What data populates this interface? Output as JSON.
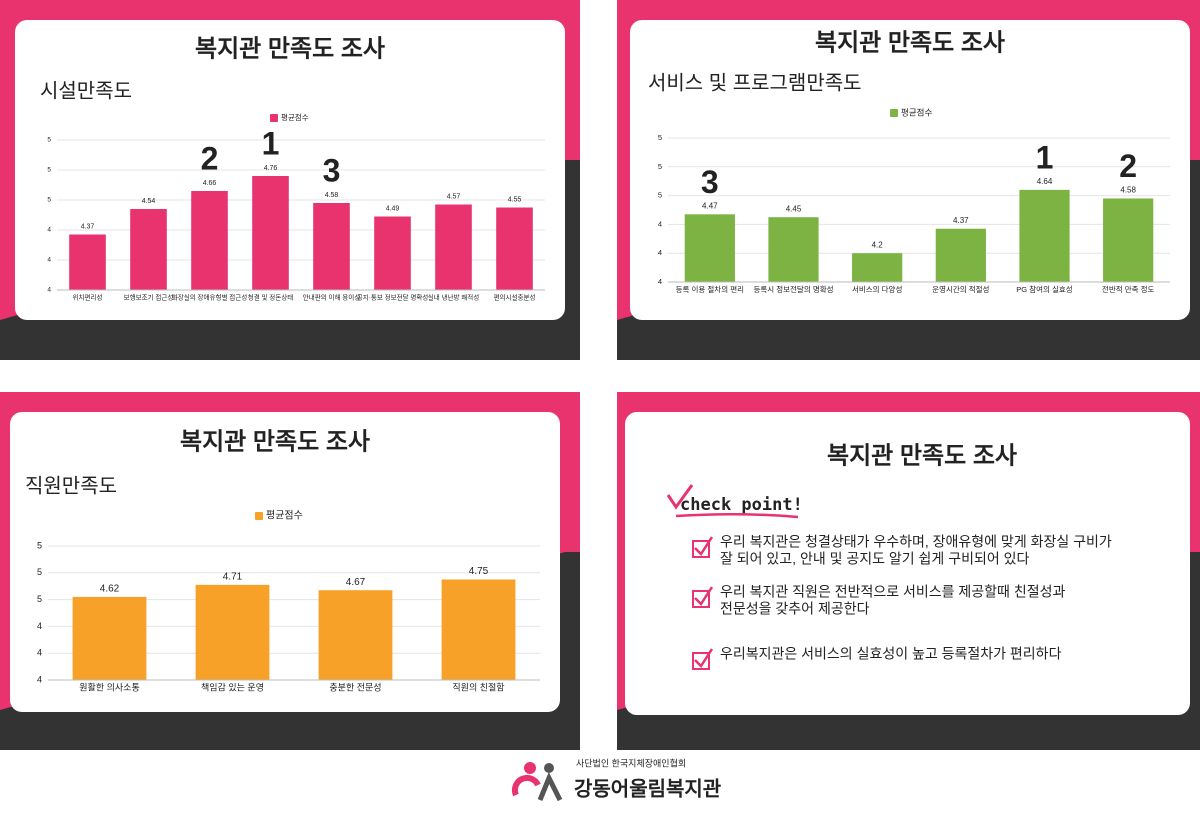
{
  "chart_data": [
    {
      "type": "bar",
      "title": "복지관 만족도 조사",
      "subtitle": "시설만족도",
      "categories": [
        "위치편리성",
        "보행보조기 접근성",
        "화장실의 장애유형별 접근성",
        "청결 및 정돈상태",
        "안내판의 이해 용이성",
        "공지·통보 정보전달 명확성",
        "실내 냉난방 쾌적성",
        "편의시설충분성"
      ],
      "series": [
        {
          "name": "평균점수",
          "color": "#e8336f",
          "values": [
            4.37,
            4.54,
            4.66,
            4.76,
            4.58,
            4.49,
            4.57,
            4.55
          ]
        }
      ],
      "rank_labels": [
        null,
        null,
        "2",
        "1",
        "3",
        null,
        null,
        null
      ],
      "ylim": [
        4,
        5
      ],
      "yticks": [
        4,
        {
          "value": 4.2,
          "label": "4"
        },
        {
          "value": 4.4,
          "label": "4"
        },
        {
          "value": 4.6,
          "label": "5"
        },
        {
          "value": 4.8,
          "label": "5"
        },
        5
      ],
      "grid": true
    },
    {
      "type": "bar",
      "title": "복지관 만족도 조사",
      "subtitle": "서비스 및 프로그램만족도",
      "categories": [
        "등록 이용 절차의 편리",
        "등록시 정보전달의 명확성",
        "서비스의 다양성",
        "운영시간의 적절성",
        "PG 참여의 실효성",
        "전반적 만족 정도"
      ],
      "series": [
        {
          "name": "평균점수",
          "color": "#7cb342",
          "values": [
            4.47,
            4.45,
            4.2,
            4.37,
            4.64,
            4.58
          ]
        }
      ],
      "rank_labels": [
        "3",
        null,
        null,
        null,
        "1",
        "2"
      ],
      "ylim": [
        4,
        5
      ],
      "yticks": [
        4,
        {
          "value": 4.2,
          "label": "4"
        },
        {
          "value": 4.4,
          "label": "4"
        },
        {
          "value": 4.6,
          "label": "5"
        },
        {
          "value": 4.8,
          "label": "5"
        },
        5
      ],
      "grid": true
    },
    {
      "type": "bar",
      "title": "복지관 만족도 조사",
      "subtitle": "직원만족도",
      "categories": [
        "원활한 의사소통",
        "책임감 있는 운영",
        "충분한 전문성",
        "직원의 친절함"
      ],
      "series": [
        {
          "name": "평균점수",
          "color": "#f7a128",
          "values": [
            4.62,
            4.71,
            4.67,
            4.75
          ]
        }
      ],
      "rank_labels": [
        null,
        null,
        null,
        null
      ],
      "ylim": [
        4,
        5
      ],
      "yticks": [
        4,
        {
          "value": 4.2,
          "label": "4"
        },
        {
          "value": 4.4,
          "label": "4"
        },
        {
          "value": 4.6,
          "label": "5"
        },
        {
          "value": 4.8,
          "label": "5"
        },
        5
      ],
      "grid": true
    }
  ],
  "checkpoint": {
    "title": "복지관 만족도 조사",
    "heading": "check point!",
    "items": [
      [
        "우리 복지관은 청결상태가 우수하며, 장애유형에 맞게 화장실 구비가",
        "잘 되어 있고,  안내 및 공지도 알기 쉽게 구비되어 있다"
      ],
      [
        "우리 복지관 직원은 전반적으로 서비스를 제공할때 친절성과",
        "전문성을 갖추어 제공한다"
      ],
      [
        "우리복지관은 서비스의 실효성이 높고 등록절차가 편리하다"
      ]
    ]
  },
  "footer": {
    "org": "사단법인 한국지체장애인협회",
    "name": "강동어울림복지관"
  }
}
